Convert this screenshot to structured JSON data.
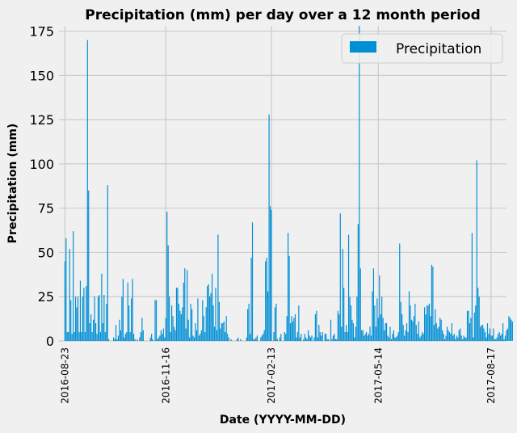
{
  "chart_data": {
    "type": "bar",
    "title": "Precipitation (mm) per day over a 12 month period",
    "xlabel": "Date (YYYY-MM-DD)",
    "ylabel": "Precipitation (mm)",
    "ylim": [
      0,
      178
    ],
    "yticks": [
      0,
      25,
      50,
      75,
      100,
      125,
      150,
      175
    ],
    "xticks": [
      {
        "label": "2016-08-23",
        "index": 0
      },
      {
        "label": "2016-11-16",
        "index": 85
      },
      {
        "label": "2017-02-13",
        "index": 174
      },
      {
        "label": "2017-05-14",
        "index": 264
      },
      {
        "label": "2017-08-17",
        "index": 359
      }
    ],
    "xlim_index": [
      -5,
      372
    ],
    "grid": true,
    "legend": {
      "position": "top-right",
      "entries": [
        "Precipitation"
      ]
    },
    "colors": {
      "bar": "#008fd5",
      "background": "#f0f0f0",
      "grid": "#cbcbcb"
    },
    "series": [
      {
        "name": "Precipitation",
        "values": [
          45,
          58,
          5,
          5,
          52,
          23,
          4,
          62,
          5,
          25,
          19,
          25,
          5,
          34,
          5,
          25,
          30,
          5,
          31,
          170,
          85,
          10,
          15,
          5,
          12,
          25,
          10,
          4,
          25,
          26,
          5,
          38,
          10,
          26,
          5,
          21,
          88,
          1,
          0,
          0,
          0,
          2,
          1,
          9,
          1,
          3,
          12,
          6,
          25,
          35,
          2,
          4,
          5,
          33,
          20,
          5,
          24,
          35,
          4,
          1,
          0,
          1,
          0,
          2,
          5,
          13,
          6,
          0,
          0,
          0,
          0,
          0,
          2,
          4,
          1,
          0,
          23,
          23,
          1,
          2,
          3,
          6,
          4,
          7,
          2,
          13,
          73,
          54,
          25,
          5,
          20,
          14,
          8,
          6,
          30,
          30,
          21,
          17,
          15,
          19,
          33,
          41,
          7,
          40,
          12,
          2,
          21,
          18,
          3,
          2,
          10,
          6,
          24,
          3,
          4,
          6,
          23,
          14,
          5,
          19,
          31,
          32,
          25,
          27,
          38,
          20,
          8,
          30,
          6,
          60,
          22,
          7,
          10,
          10,
          11,
          5,
          14,
          4,
          2,
          0,
          1,
          0,
          0,
          0,
          0,
          1,
          2,
          0,
          1,
          0,
          0,
          0,
          0,
          2,
          18,
          21,
          4,
          47,
          67,
          1,
          1,
          2,
          3,
          0,
          0,
          2,
          3,
          4,
          6,
          45,
          47,
          28,
          128,
          76,
          74,
          0,
          5,
          19,
          21,
          1,
          0,
          2,
          4,
          0,
          0,
          5,
          4,
          14,
          61,
          48,
          10,
          14,
          11,
          13,
          15,
          2,
          5,
          20,
          2,
          4,
          0,
          1,
          4,
          2,
          1,
          6,
          3,
          2,
          3,
          0,
          2,
          15,
          17,
          2,
          9,
          5,
          3,
          5,
          0,
          4,
          4,
          1,
          1,
          0,
          12,
          1,
          3,
          4,
          1,
          1,
          17,
          15,
          72,
          8,
          52,
          30,
          5,
          9,
          5,
          60,
          25,
          20,
          12,
          10,
          2,
          8,
          25,
          66,
          178,
          41,
          6,
          6,
          3,
          4,
          5,
          3,
          4,
          8,
          3,
          28,
          41,
          20,
          8,
          24,
          13,
          37,
          15,
          25,
          13,
          6,
          10,
          10,
          3,
          2,
          8,
          1,
          4,
          6,
          2,
          2,
          3,
          5,
          55,
          22,
          15,
          9,
          3,
          6,
          10,
          5,
          28,
          20,
          12,
          11,
          14,
          21,
          9,
          4,
          11,
          2,
          3,
          5,
          4,
          19,
          15,
          20,
          20,
          21,
          14,
          43,
          42,
          9,
          18,
          10,
          7,
          8,
          13,
          12,
          6,
          4,
          1,
          3,
          8,
          6,
          5,
          4,
          10,
          3,
          4,
          1,
          3,
          2,
          6,
          7,
          3,
          1,
          3,
          2,
          2,
          17,
          17,
          10,
          13,
          61,
          2,
          16,
          20,
          102,
          30,
          25,
          8,
          9,
          9,
          7,
          5,
          2,
          10,
          4,
          7,
          3,
          3,
          7,
          1,
          1,
          2,
          4,
          5,
          3,
          4,
          10,
          1,
          3,
          6,
          7,
          14,
          13,
          12,
          11
        ]
      }
    ]
  }
}
